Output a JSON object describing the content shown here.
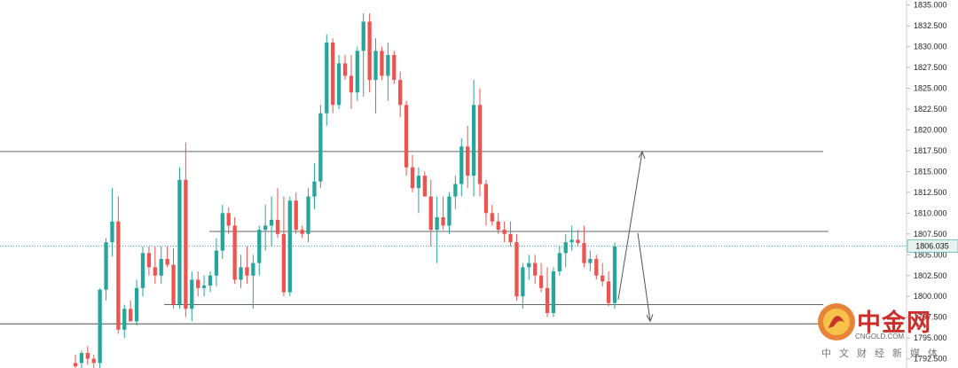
{
  "chart_data": {
    "type": "candlestick",
    "ylim": [
      1791.5,
      1835.5
    ],
    "y_ticks": [
      "1835.000",
      "1832.500",
      "1830.000",
      "1827.500",
      "1825.000",
      "1822.500",
      "1820.000",
      "1817.500",
      "1815.000",
      "1812.500",
      "1810.000",
      "1807.500",
      "1805.000",
      "1802.500",
      "1800.000",
      "1797.500",
      "1795.000",
      "1792.500"
    ],
    "y_tick_values": [
      1835,
      1832.5,
      1830,
      1827.5,
      1825,
      1822.5,
      1820,
      1817.5,
      1815,
      1812.5,
      1810,
      1807.5,
      1805,
      1802.5,
      1800,
      1797.5,
      1795,
      1792.5
    ],
    "current_price": "1806.035",
    "current_price_value": 1806.035,
    "colors": {
      "up": "#26a69a",
      "down": "#ef5350",
      "line": "#333333",
      "arrow": "#555555"
    },
    "horizontal_levels": [
      1817.4,
      1807.8,
      1799.0,
      1796.7
    ],
    "arrows": [
      {
        "from": [
          1799.6
        ],
        "to": [
          1817.4
        ],
        "direction": "up"
      },
      {
        "from": [
          1807.6
        ],
        "to": [
          1797.0
        ],
        "direction": "down"
      }
    ],
    "candles": [
      [
        1792,
        1793,
        1791,
        1791.6
      ],
      [
        1792,
        1793.5,
        1791,
        1793.2
      ],
      [
        1793.2,
        1794,
        1791.8,
        1792.5
      ],
      [
        1792.5,
        1793,
        1791,
        1792
      ],
      [
        1792,
        1801,
        1791,
        1800.8
      ],
      [
        1800.8,
        1807,
        1799.5,
        1806.5
      ],
      [
        1806.5,
        1813,
        1804.8,
        1809
      ],
      [
        1809,
        1812,
        1795.5,
        1796
      ],
      [
        1796,
        1799,
        1795,
        1798.5
      ],
      [
        1798.5,
        1799.5,
        1797,
        1797
      ],
      [
        1797,
        1802,
        1796.5,
        1801
      ],
      [
        1801,
        1806,
        1800,
        1805.2
      ],
      [
        1805.2,
        1806,
        1802.5,
        1803.5
      ],
      [
        1803.5,
        1806,
        1801.5,
        1802.5
      ],
      [
        1802.5,
        1806,
        1801.5,
        1804.5
      ],
      [
        1804.5,
        1806,
        1803.5,
        1803.8
      ],
      [
        1803.8,
        1805.8,
        1798.5,
        1799
      ],
      [
        1799,
        1815.5,
        1798.5,
        1814
      ],
      [
        1814,
        1818.5,
        1797.5,
        1798.5
      ],
      [
        1798.5,
        1803,
        1797,
        1802
      ],
      [
        1802,
        1803,
        1800,
        1801
      ],
      [
        1801,
        1802.5,
        1800,
        1801.3
      ],
      [
        1801.3,
        1803,
        1800.5,
        1802.5
      ],
      [
        1802.5,
        1807,
        1801.2,
        1805.5
      ],
      [
        1805.5,
        1811,
        1804.5,
        1810
      ],
      [
        1810,
        1810.7,
        1807.5,
        1808.5
      ],
      [
        1808.5,
        1809.5,
        1801.5,
        1802
      ],
      [
        1802,
        1805,
        1801,
        1803.5
      ],
      [
        1803.5,
        1806,
        1801.5,
        1802.5
      ],
      [
        1802.5,
        1805,
        1798.5,
        1804
      ],
      [
        1804,
        1808.5,
        1802.5,
        1808
      ],
      [
        1808,
        1811,
        1805.5,
        1808.5
      ],
      [
        1808.5,
        1812,
        1806,
        1809.2
      ],
      [
        1809.2,
        1813,
        1807,
        1807.5
      ],
      [
        1807.5,
        1812,
        1800,
        1800.5
      ],
      [
        1800.5,
        1812,
        1800,
        1811.5
      ],
      [
        1811.5,
        1812.5,
        1807.5,
        1808
      ],
      [
        1808,
        1808.5,
        1807,
        1807.5
      ],
      [
        1807.5,
        1813,
        1806.5,
        1812
      ],
      [
        1812,
        1816,
        1810.5,
        1813.8
      ],
      [
        1813.8,
        1823,
        1813,
        1822
      ],
      [
        1822,
        1831.5,
        1820.5,
        1830.5
      ],
      [
        1830.5,
        1831,
        1822,
        1823
      ],
      [
        1823,
        1829,
        1822.5,
        1828
      ],
      [
        1828,
        1829,
        1826,
        1826.5
      ],
      [
        1826.5,
        1829,
        1822.5,
        1824.5
      ],
      [
        1824.5,
        1830,
        1823.5,
        1829.5
      ],
      [
        1829.5,
        1834,
        1824,
        1833
      ],
      [
        1833,
        1834,
        1824.5,
        1826
      ],
      [
        1826,
        1831,
        1822,
        1829.5
      ],
      [
        1829.5,
        1830,
        1826,
        1826.5
      ],
      [
        1826.5,
        1830.5,
        1823.5,
        1829
      ],
      [
        1829,
        1829.5,
        1825.5,
        1826
      ],
      [
        1826,
        1827,
        1821.5,
        1823
      ],
      [
        1823,
        1823.5,
        1814.5,
        1815.5
      ],
      [
        1815.5,
        1817,
        1812.5,
        1813
      ],
      [
        1813,
        1815.5,
        1810,
        1814.5
      ],
      [
        1814.5,
        1815,
        1812,
        1812
      ],
      [
        1812,
        1814,
        1806,
        1808
      ],
      [
        1808,
        1812,
        1804,
        1809.5
      ],
      [
        1809.5,
        1812,
        1808,
        1808.5
      ],
      [
        1808.5,
        1812.5,
        1807.5,
        1812
      ],
      [
        1812,
        1814.5,
        1810.5,
        1813.5
      ],
      [
        1813.5,
        1819,
        1812,
        1818
      ],
      [
        1818,
        1820.5,
        1813,
        1814.5
      ],
      [
        1814.5,
        1826,
        1812,
        1823
      ],
      [
        1823,
        1825,
        1812,
        1813.5
      ],
      [
        1813.5,
        1814,
        1808.5,
        1810
      ],
      [
        1810,
        1811,
        1808.5,
        1809
      ],
      [
        1809,
        1810,
        1807.5,
        1808
      ],
      [
        1808,
        1809,
        1806.5,
        1807.5
      ],
      [
        1807.5,
        1809,
        1806,
        1806.5
      ],
      [
        1806.5,
        1807.5,
        1799.5,
        1800
      ],
      [
        1800,
        1804,
        1798.5,
        1803.5
      ],
      [
        1803.5,
        1805,
        1802,
        1804
      ],
      [
        1804,
        1805,
        1801.5,
        1802.5
      ],
      [
        1802.5,
        1804,
        1800.5,
        1801
      ],
      [
        1801,
        1803.5,
        1797.5,
        1798
      ],
      [
        1798,
        1803.5,
        1797.5,
        1803
      ],
      [
        1803,
        1806,
        1802.5,
        1805.2
      ],
      [
        1805.2,
        1807.5,
        1803.5,
        1806.5
      ],
      [
        1806.5,
        1808.5,
        1805.5,
        1806.8
      ],
      [
        1806.8,
        1808,
        1806,
        1806.4
      ],
      [
        1806.4,
        1808.5,
        1803.5,
        1804
      ],
      [
        1804,
        1805.5,
        1803,
        1804.5
      ],
      [
        1804.5,
        1805,
        1802,
        1802.5
      ],
      [
        1802.5,
        1804,
        1801.2,
        1801.8
      ],
      [
        1801.8,
        1803,
        1798.8,
        1799.2
      ],
      [
        1799.2,
        1806.5,
        1798.5,
        1806
      ]
    ]
  },
  "logo": {
    "cn": "中金网",
    "en": "CNGOLD.COM",
    "sub": "中文财经新媒体"
  }
}
